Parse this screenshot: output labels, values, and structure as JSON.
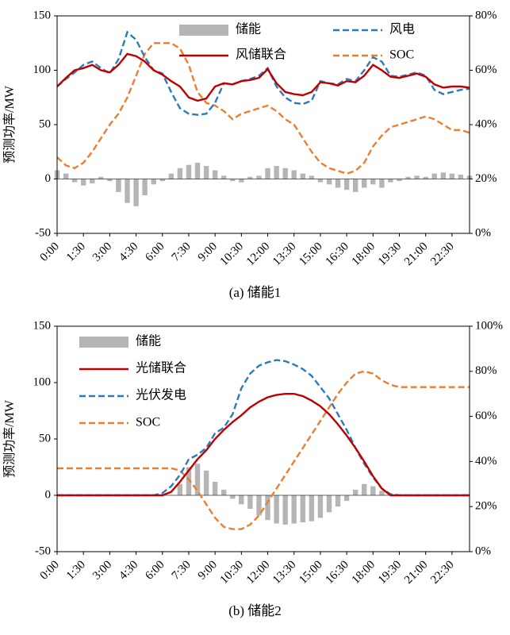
{
  "colors": {
    "storage_bar": "#b5b5b5",
    "combined_red": "#c00000",
    "renewable_blue": "#2b7bba",
    "soc_orange": "#ed7d31",
    "axis": "#000000"
  },
  "chart_data": {
    "x_times": [
      "0:00",
      "0:30",
      "1:00",
      "1:30",
      "2:00",
      "2:30",
      "3:00",
      "3:30",
      "4:00",
      "4:30",
      "5:00",
      "5:30",
      "6:00",
      "6:30",
      "7:00",
      "7:30",
      "8:00",
      "8:30",
      "9:00",
      "9:30",
      "10:00",
      "10:30",
      "11:00",
      "11:30",
      "12:00",
      "12:30",
      "13:00",
      "13:30",
      "14:00",
      "14:30",
      "15:00",
      "15:30",
      "16:00",
      "16:30",
      "17:00",
      "17:30",
      "18:00",
      "18:30",
      "19:00",
      "19:30",
      "20:00",
      "20:30",
      "21:00",
      "21:30",
      "22:00",
      "22:30",
      "23:00",
      "23:30"
    ],
    "xtick_labels": [
      "0:00",
      "1:30",
      "3:00",
      "4:30",
      "6:00",
      "7:30",
      "9:00",
      "10:30",
      "12:00",
      "13:30",
      "15:00",
      "16:30",
      "18:00",
      "19:30",
      "21:00",
      "22:30"
    ],
    "charts": [
      {
        "type": "combo",
        "title": "(a) 储能1",
        "ylabel_left": "预测功率/MW",
        "ylim_left": [
          -50,
          150
        ],
        "yticks_left": [
          150,
          100,
          50,
          0,
          -50
        ],
        "ylim_right": [
          0,
          80
        ],
        "yticks_right": [
          "80%",
          "60%",
          "40%",
          "20%",
          "0%"
        ],
        "legend_rows": [
          [
            "储能",
            "风电"
          ],
          [
            "风储联合",
            "SOC"
          ]
        ],
        "series": [
          {
            "name": "储能",
            "type": "bar",
            "axis": "left",
            "color": "#b5b5b5",
            "values": [
              8,
              5,
              -3,
              -6,
              -4,
              2,
              -2,
              -12,
              -22,
              -25,
              -15,
              -5,
              -2,
              5,
              10,
              13,
              15,
              12,
              8,
              3,
              -2,
              -3,
              2,
              3,
              10,
              12,
              10,
              8,
              5,
              3,
              -3,
              -5,
              -8,
              -10,
              -12,
              -8,
              -5,
              -8,
              -3,
              -2,
              2,
              3,
              2,
              5,
              6,
              5,
              4,
              3
            ]
          },
          {
            "name": "风储联合",
            "type": "line",
            "dash": "solid",
            "axis": "left",
            "color": "#c00000",
            "values": [
              85,
              93,
              100,
              102,
              105,
              100,
              98,
              105,
              115,
              113,
              108,
              100,
              96,
              90,
              85,
              75,
              72,
              74,
              85,
              88,
              87,
              90,
              91,
              93,
              101,
              88,
              80,
              78,
              77,
              80,
              89,
              88,
              86,
              90,
              89,
              95,
              105,
              100,
              94,
              93,
              95,
              97,
              94,
              87,
              84,
              85,
              85,
              84
            ]
          },
          {
            "name": "风电",
            "type": "line",
            "dash": "dashed",
            "axis": "left",
            "color": "#2b7bba",
            "values": [
              85,
              92,
              98,
              105,
              108,
              102,
              97,
              110,
              135,
              128,
              112,
              100,
              97,
              80,
              65,
              60,
              59,
              60,
              70,
              88,
              87,
              90,
              92,
              95,
              102,
              85,
              75,
              70,
              69,
              72,
              90,
              88,
              87,
              92,
              90,
              100,
              112,
              108,
              95,
              94,
              96,
              98,
              95,
              82,
              78,
              80,
              82,
              83
            ]
          },
          {
            "name": "SOC",
            "type": "line",
            "dash": "dashed",
            "axis": "right",
            "color": "#ed7d31",
            "values": [
              28,
              25,
              24,
              26,
              30,
              35,
              40,
              44,
              50,
              58,
              66,
              70,
              70,
              70,
              68,
              62,
              52,
              48,
              47,
              45,
              42,
              44,
              45,
              46,
              47,
              45,
              42,
              40,
              35,
              30,
              26,
              24,
              23,
              22,
              23,
              26,
              32,
              36,
              39,
              40,
              41,
              42,
              43,
              42,
              40,
              38,
              38,
              37
            ]
          }
        ]
      },
      {
        "type": "combo",
        "title": "(b) 储能2",
        "ylabel_left": "预测功率/MW",
        "ylim_left": [
          -50,
          150
        ],
        "yticks_left": [
          150,
          100,
          50,
          0,
          -50
        ],
        "ylim_right": [
          0,
          100
        ],
        "yticks_right": [
          "100%",
          "80%",
          "60%",
          "40%",
          "20%",
          "0%"
        ],
        "legend_items": [
          "储能",
          "光储联合",
          "光伏发电",
          "SOC"
        ],
        "series": [
          {
            "name": "储能",
            "type": "bar",
            "axis": "left",
            "color": "#b5b5b5",
            "values": [
              0,
              0,
              0,
              0,
              0,
              0,
              0,
              0,
              0,
              0,
              0,
              0,
              0,
              0,
              10,
              25,
              28,
              22,
              12,
              5,
              -3,
              -8,
              -12,
              -18,
              -22,
              -25,
              -26,
              -25,
              -24,
              -23,
              -20,
              -15,
              -10,
              -5,
              5,
              10,
              8,
              4,
              1,
              0,
              0,
              0,
              0,
              0,
              0,
              0,
              0,
              0
            ]
          },
          {
            "name": "光储联合",
            "type": "line",
            "dash": "solid",
            "axis": "left",
            "color": "#c00000",
            "values": [
              0,
              0,
              0,
              0,
              0,
              0,
              0,
              0,
              0,
              0,
              0,
              0,
              0,
              3,
              12,
              22,
              32,
              40,
              50,
              58,
              65,
              71,
              78,
              83,
              87,
              89,
              90,
              90,
              88,
              84,
              79,
              72,
              63,
              53,
              42,
              30,
              17,
              6,
              0,
              0,
              0,
              0,
              0,
              0,
              0,
              0,
              0,
              0
            ]
          },
          {
            "name": "光伏发电",
            "type": "line",
            "dash": "dashed",
            "axis": "left",
            "color": "#2b7bba",
            "values": [
              0,
              0,
              0,
              0,
              0,
              0,
              0,
              0,
              0,
              0,
              0,
              0,
              2,
              8,
              18,
              32,
              36,
              42,
              55,
              60,
              72,
              95,
              108,
              115,
              118,
              120,
              119,
              116,
              112,
              106,
              96,
              86,
              72,
              58,
              42,
              28,
              16,
              6,
              1,
              0,
              0,
              0,
              0,
              0,
              0,
              0,
              0,
              0
            ]
          },
          {
            "name": "SOC",
            "type": "line",
            "dash": "dashed",
            "axis": "right",
            "color": "#ed7d31",
            "values": [
              37,
              37,
              37,
              37,
              37,
              37,
              37,
              37,
              37,
              37,
              37,
              37,
              37,
              37,
              36,
              32,
              27,
              21,
              15,
              11,
              10,
              10,
              12,
              16,
              22,
              28,
              34,
              40,
              46,
              52,
              58,
              64,
              70,
              75,
              79,
              80,
              79,
              76,
              74,
              73,
              73,
              73,
              73,
              73,
              73,
              73,
              73,
              73
            ]
          }
        ]
      }
    ]
  }
}
